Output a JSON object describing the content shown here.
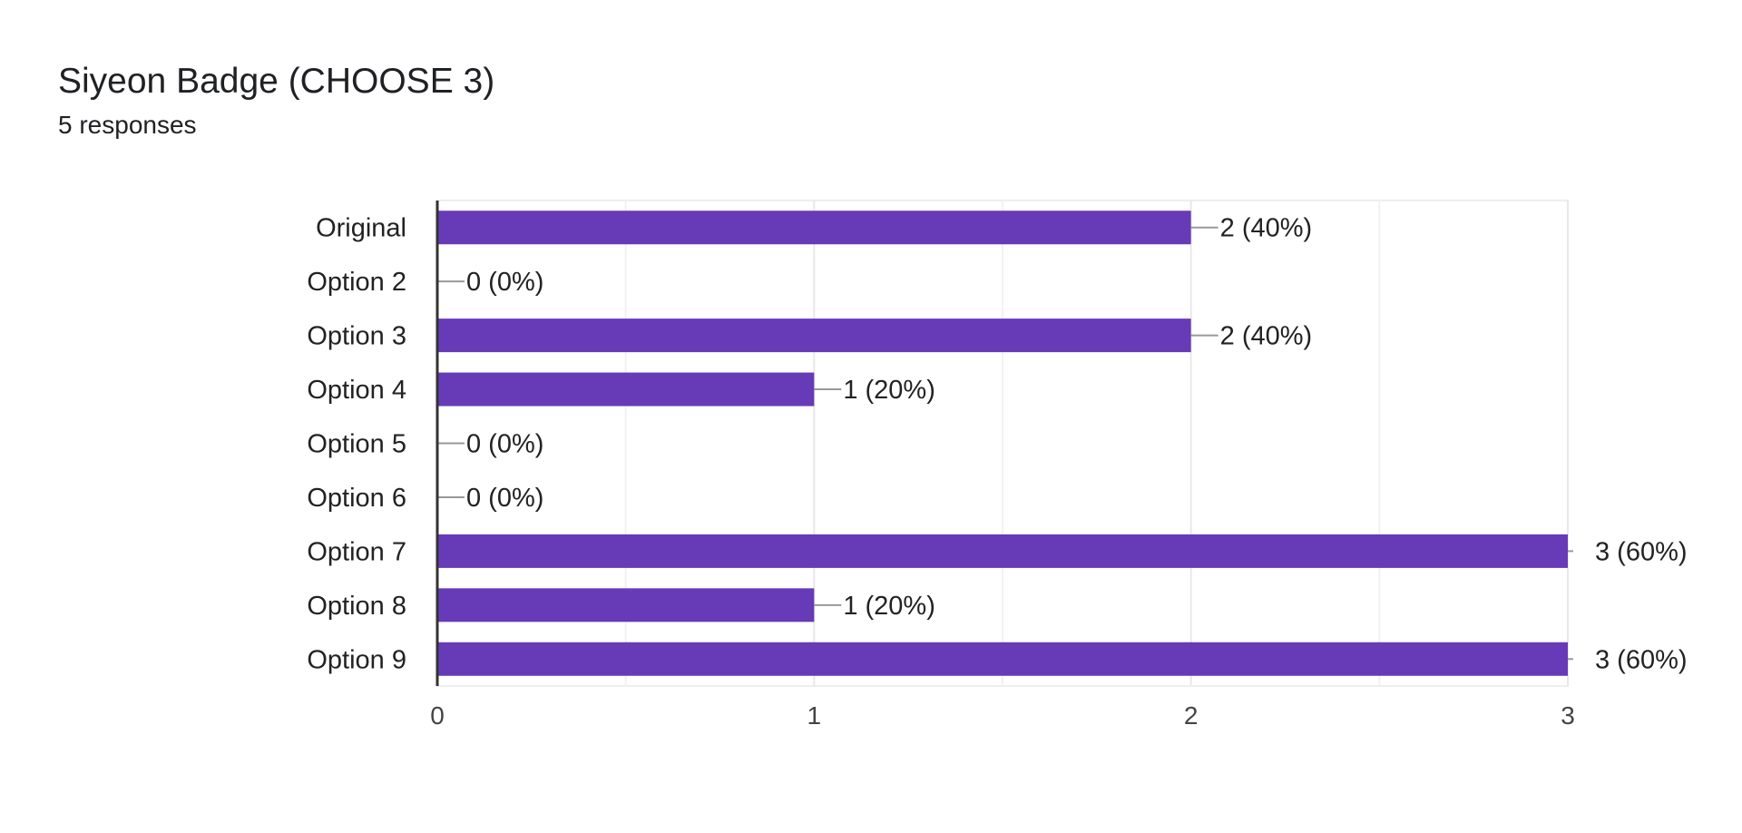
{
  "header": {
    "title": "Siyeon Badge (CHOOSE 3)",
    "subtitle": "5 responses"
  },
  "chart_data": {
    "type": "bar",
    "orientation": "horizontal",
    "title": "Siyeon Badge (CHOOSE 3)",
    "subtitle": "5 responses",
    "categories": [
      "Original",
      "Option 2",
      "Option 3",
      "Option 4",
      "Option 5",
      "Option 6",
      "Option 7",
      "Option 8",
      "Option 9"
    ],
    "values": [
      2,
      0,
      2,
      1,
      0,
      0,
      3,
      1,
      3
    ],
    "data_labels": [
      "2 (40%)",
      "0 (0%)",
      "2 (40%)",
      "1 (20%)",
      "0 (0%)",
      "0 (0%)",
      "3 (60%)",
      "1 (20%)",
      "3 (60%)"
    ],
    "xlim": [
      0,
      3
    ],
    "xticks": [
      "0",
      "1",
      "2",
      "3"
    ],
    "grid": true,
    "bar_color": "#673ab7",
    "xlabel": "",
    "ylabel": ""
  }
}
